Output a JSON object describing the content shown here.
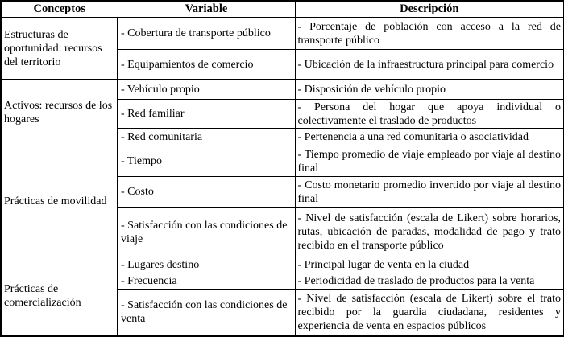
{
  "headers": [
    "Conceptos",
    "Variable",
    "Descripción"
  ],
  "groups": [
    {
      "concepto": "Estructuras de oportunidad: recursos del territorio",
      "rows": [
        {
          "variable": "- Cobertura de transporte público",
          "descripcion": "- Porcentaje de población con acceso a la red de transporte público"
        },
        {
          "variable": "- Equipamientos de comercio",
          "descripcion": "- Ubicación de la infraestructura principal para comercio"
        }
      ]
    },
    {
      "concepto": "Activos: recursos de los hogares",
      "rows": [
        {
          "variable": "- Vehículo propio",
          "descripcion": "- Disposición de vehículo propio"
        },
        {
          "variable": "- Red familiar",
          "descripcion": "- Persona del hogar que apoya individual o colectivamente el traslado de productos"
        },
        {
          "variable": "- Red comunitaria",
          "descripcion": "- Pertenencia a una red comunitaria o asociatividad"
        }
      ]
    },
    {
      "concepto": "Prácticas de movilidad",
      "rows": [
        {
          "variable": "- Tiempo",
          "descripcion": "- Tiempo promedio de viaje empleado por viaje al destino final"
        },
        {
          "variable": "- Costo",
          "descripcion": "- Costo monetario promedio invertido por viaje al destino final"
        },
        {
          "variable": "- Satisfacción con las condiciones de viaje",
          "descripcion": "- Nivel de satisfacción (escala de Likert) sobre horarios, rutas, ubicación de paradas, modalidad de pago y trato recibido en el transporte público"
        }
      ]
    },
    {
      "concepto": "Prácticas de comercialización",
      "rows": [
        {
          "variable": "- Lugares destino",
          "descripcion": "- Principal lugar de venta en la ciudad"
        },
        {
          "variable": "- Frecuencia",
          "descripcion": "- Periodicidad de traslado de productos para la venta"
        },
        {
          "variable": "- Satisfacción con las condiciones de venta",
          "descripcion": "- Nivel de satisfacción (escala de Likert) sobre el trato recibido por la guardia ciudadana, residentes y experiencia de venta en espacios públicos"
        }
      ]
    }
  ]
}
